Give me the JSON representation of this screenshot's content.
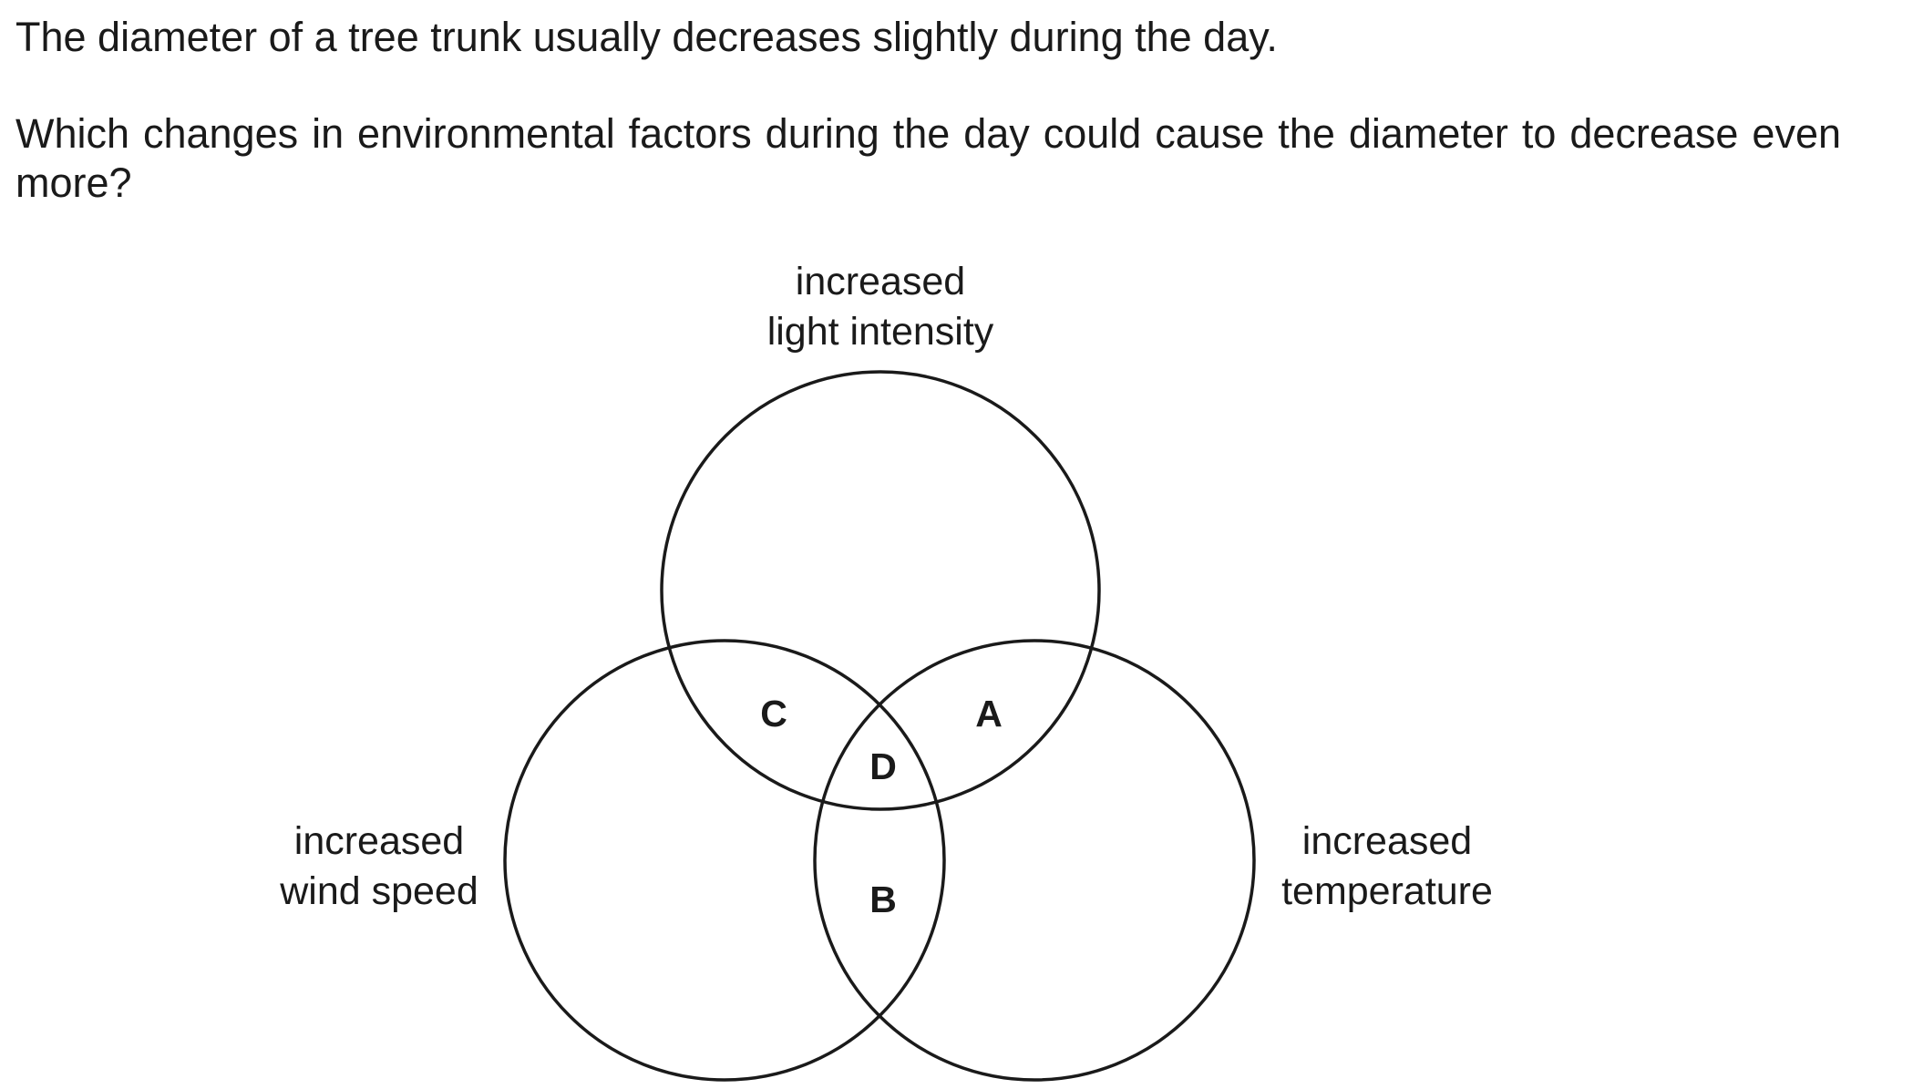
{
  "question": {
    "statement": "The diameter of a tree trunk usually decreases slightly during the day.",
    "prompt": "Which changes in environmental factors during the day could cause the diameter to decrease even more?"
  },
  "diagram": {
    "sets": {
      "top": [
        "increased",
        "light intensity"
      ],
      "left": [
        "increased",
        "wind speed"
      ],
      "right": [
        "increased",
        "temperature"
      ]
    },
    "regions": {
      "a": "A",
      "b": "B",
      "c": "C",
      "d": "D"
    }
  }
}
